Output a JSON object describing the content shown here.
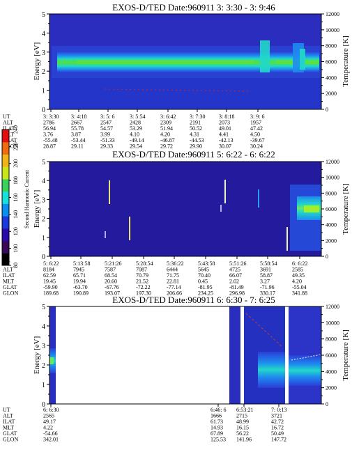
{
  "colorbar": {
    "label": "Second Harmonic Current",
    "ticks": [
      "80",
      "100",
      "120",
      "140",
      "160",
      "180",
      "200",
      "220",
      "240"
    ],
    "colors": [
      "#000000",
      "#3a0a5a",
      "#2a0aa8",
      "#1a3adc",
      "#0a8ef0",
      "#16e0d8",
      "#38d25a",
      "#c8e61a",
      "#f0b418",
      "#f06a12",
      "#e01010"
    ]
  },
  "chart_data": [
    {
      "type": "heatmap",
      "title": "EXOS-D/TED   Date:960911  3: 3:30 - 3: 9:46",
      "ylabel": "Energy [eV]",
      "ylabel_right": "Temperature [K]",
      "ylim": [
        0,
        5
      ],
      "y_ticks": [
        "0",
        "1",
        "2",
        "3",
        "4",
        "5"
      ],
      "y2lim": [
        0,
        12000
      ],
      "y2_ticks": [
        "0",
        "2000",
        "4000",
        "6000",
        "8000",
        "10000",
        "12000"
      ],
      "band_ev": [
        1.8,
        2.6
      ],
      "band_peak_ev": 2.25,
      "row_labels": [
        "UT",
        "ALT",
        "ILAT",
        "MLT",
        "GLAT",
        "GLON"
      ],
      "columns": [
        [
          "3: 3:30",
          "2786",
          "56.94",
          "3.76",
          "-55.48",
          "28.87"
        ],
        [
          "3: 4:18",
          "2667",
          "55.78",
          "3.87",
          "-53.44",
          "29.11"
        ],
        [
          "3: 5: 6",
          "2547",
          "54.57",
          "3.99",
          "-51.33",
          "29.33"
        ],
        [
          "3: 5:54",
          "2428",
          "53.29",
          "4.10",
          "-49.14",
          "29.54"
        ],
        [
          "3: 6:42",
          "2309",
          "51.94",
          "4.20",
          "-46.87",
          "29.72"
        ],
        [
          "3: 7:30",
          "2191",
          "50.52",
          "4.31",
          "-44.53",
          "29.90"
        ],
        [
          "3: 8:18",
          "2073",
          "49.01",
          "4.41",
          "-42.13",
          "30.07"
        ],
        [
          "3: 9: 6",
          "1957",
          "47.42",
          "4.50",
          "-39.67",
          "30.24"
        ]
      ]
    },
    {
      "type": "heatmap",
      "title": "EXOS-D/TED   Date:960911  5: 6:22 - 6: 6:22",
      "ylabel": "Energy [eV]",
      "ylabel_right": "Temperature [K]",
      "ylim": [
        0,
        5
      ],
      "y_ticks": [
        "0",
        "1",
        "2",
        "3",
        "4",
        "5"
      ],
      "y2lim": [
        0,
        12000
      ],
      "y2_ticks": [
        "0",
        "2000",
        "4000",
        "6000",
        "8000",
        "10000",
        "12000"
      ],
      "row_labels": [
        "UT",
        "ALT",
        "ILAT",
        "MLT",
        "GLAT",
        "GLON"
      ],
      "columns": [
        [
          "5: 6:22",
          "8184",
          "62.59",
          "19.45",
          "-59.90",
          "189.68"
        ],
        [
          "5:13:58",
          "7945",
          "65.71",
          "19.94",
          "-63.70",
          "190.89"
        ],
        [
          "5:21:26",
          "7587",
          "68.54",
          "20.60",
          "-67.76",
          "193.07"
        ],
        [
          "5:28:54",
          "7087",
          "70.79",
          "21.52",
          "-72.22",
          "197.30"
        ],
        [
          "5:36:22",
          "6444",
          "71.75",
          "22.81",
          "-77.14",
          "206.66"
        ],
        [
          "5:43:58",
          "5645",
          "70.40",
          "0.45",
          "-81.95",
          "234.25"
        ],
        [
          "5:51:26",
          "4725",
          "66.07",
          "2.02",
          "-81.49",
          "296.98"
        ],
        [
          "5:58:54",
          "3691",
          "58.87",
          "3.27",
          "-71.96",
          "330.17"
        ],
        [
          "6: 6:22",
          "2585",
          "49.35",
          "4.20",
          "-55.04",
          "341.88"
        ]
      ]
    },
    {
      "type": "heatmap",
      "title": "EXOS-D/TED   Date:960911  6: 6:30 - 7: 6:25",
      "ylabel": "Energy [eV]",
      "ylabel_right": "Temperature [K]",
      "ylim": [
        0,
        5
      ],
      "y_ticks": [
        "0",
        "1",
        "2",
        "3",
        "4",
        "5"
      ],
      "y2lim": [
        0,
        12000
      ],
      "y2_ticks": [
        "0",
        "2000",
        "4000",
        "6000",
        "8000",
        "10000",
        "12000"
      ],
      "row_labels": [
        "UT",
        "ALT",
        "ILAT",
        "MLT",
        "GLAT",
        "GLON"
      ],
      "columns": [
        [
          "6: 6:30",
          "2565",
          "49.17",
          "4.22",
          "-54.66",
          "342.01"
        ],
        [
          "6:46: 6",
          "1666",
          "61.73",
          "14.93",
          "67.89",
          "125.53"
        ],
        [
          "6:53:21",
          "2715",
          "48.99",
          "16.15",
          "56.22",
          "141.96"
        ],
        [
          "7: 0:13",
          "3721",
          "42.72",
          "16.72",
          "50.49",
          "147.72"
        ]
      ]
    }
  ]
}
